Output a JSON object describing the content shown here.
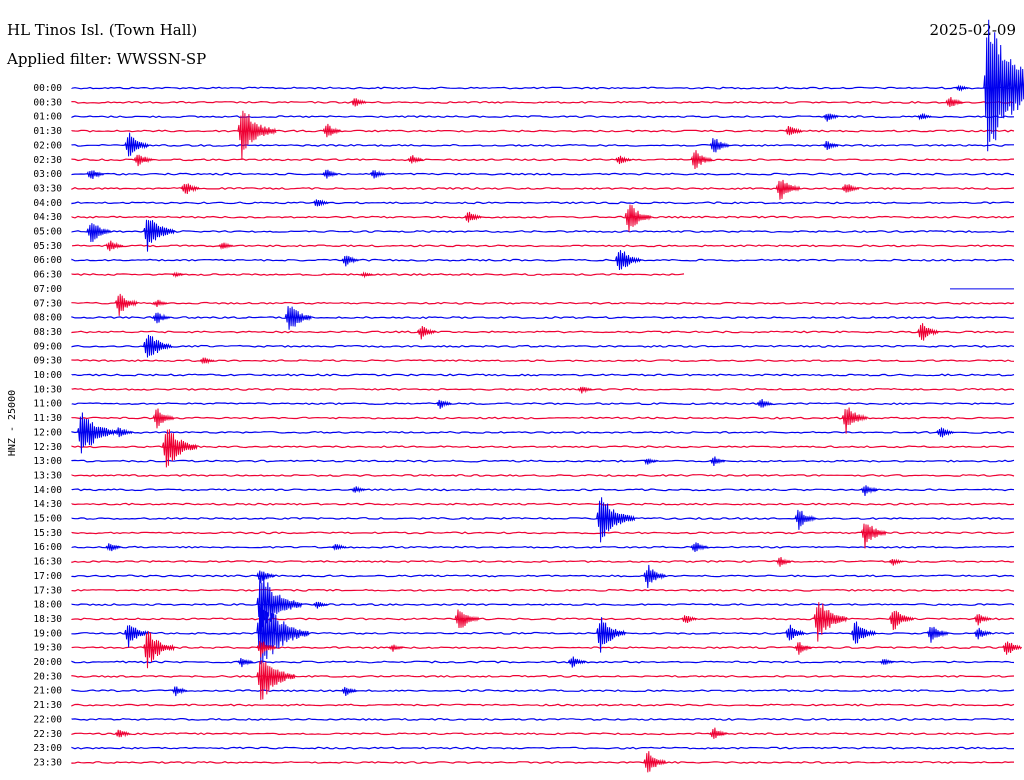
{
  "header": {
    "station": "HL Tinos Isl. (Town Hall)",
    "filter": "Applied filter: WWSSN-SP",
    "date": "2025-02-09"
  },
  "colors": {
    "odd_trace": "#0000ee",
    "even_trace": "#ee0033"
  },
  "chart_data": {
    "type": "line",
    "title": "HL Tinos Isl. (Town Hall)",
    "subtitle": "Applied filter: WWSSN-SP",
    "ylabel": "HNZ - 25000",
    "row_labels": [
      "00:00",
      "00:30",
      "01:00",
      "01:30",
      "02:00",
      "02:30",
      "03:00",
      "03:30",
      "04:00",
      "04:30",
      "05:00",
      "05:30",
      "06:00",
      "06:30",
      "07:00",
      "07:30",
      "08:00",
      "08:30",
      "09:00",
      "09:30",
      "10:00",
      "10:30",
      "11:00",
      "11:30",
      "12:00",
      "12:30",
      "13:00",
      "13:30",
      "14:00",
      "14:30",
      "15:00",
      "15:30",
      "16:00",
      "16:30",
      "17:00",
      "17:30",
      "18:00",
      "18:30",
      "19:00",
      "19:30",
      "20:00",
      "20:30",
      "21:00",
      "21:30",
      "22:00",
      "22:30",
      "23:00",
      "23:30"
    ],
    "row_minutes": 30,
    "trace_gap_rows": [
      "07:00"
    ],
    "events_note": "bursts: time position as fraction of row, relative amplitude (1 = row spacing)",
    "events": [
      {
        "row": "00:00",
        "t": 0.94,
        "amp": 0.25
      },
      {
        "row": "00:00",
        "t": 0.97,
        "amp": 5.0
      },
      {
        "row": "00:30",
        "t": 0.3,
        "amp": 0.4
      },
      {
        "row": "00:30",
        "t": 0.93,
        "amp": 0.5
      },
      {
        "row": "01:00",
        "t": 0.8,
        "amp": 0.4
      },
      {
        "row": "01:00",
        "t": 0.9,
        "amp": 0.3
      },
      {
        "row": "01:30",
        "t": 0.18,
        "amp": 2.0
      },
      {
        "row": "01:30",
        "t": 0.27,
        "amp": 0.6
      },
      {
        "row": "01:30",
        "t": 0.76,
        "amp": 0.5
      },
      {
        "row": "02:00",
        "t": 0.06,
        "amp": 1.0
      },
      {
        "row": "02:00",
        "t": 0.68,
        "amp": 0.7
      },
      {
        "row": "02:00",
        "t": 0.8,
        "amp": 0.4
      },
      {
        "row": "02:30",
        "t": 0.07,
        "amp": 0.6
      },
      {
        "row": "02:30",
        "t": 0.36,
        "amp": 0.4
      },
      {
        "row": "02:30",
        "t": 0.58,
        "amp": 0.4
      },
      {
        "row": "02:30",
        "t": 0.66,
        "amp": 0.8
      },
      {
        "row": "03:00",
        "t": 0.02,
        "amp": 0.5
      },
      {
        "row": "03:00",
        "t": 0.27,
        "amp": 0.4
      },
      {
        "row": "03:00",
        "t": 0.32,
        "amp": 0.4
      },
      {
        "row": "03:30",
        "t": 0.12,
        "amp": 0.6
      },
      {
        "row": "03:30",
        "t": 0.75,
        "amp": 1.0
      },
      {
        "row": "03:30",
        "t": 0.82,
        "amp": 0.5
      },
      {
        "row": "04:00",
        "t": 0.26,
        "amp": 0.4
      },
      {
        "row": "04:30",
        "t": 0.42,
        "amp": 0.5
      },
      {
        "row": "04:30",
        "t": 0.59,
        "amp": 1.2
      },
      {
        "row": "05:00",
        "t": 0.02,
        "amp": 1.0
      },
      {
        "row": "05:00",
        "t": 0.08,
        "amp": 1.5
      },
      {
        "row": "05:30",
        "t": 0.04,
        "amp": 0.5
      },
      {
        "row": "05:30",
        "t": 0.16,
        "amp": 0.3
      },
      {
        "row": "06:00",
        "t": 0.29,
        "amp": 0.5
      },
      {
        "row": "06:00",
        "t": 0.58,
        "amp": 1.1
      },
      {
        "row": "06:30",
        "t": 0.11,
        "amp": 0.2
      },
      {
        "row": "06:30",
        "t": 0.31,
        "amp": 0.2
      },
      {
        "row": "07:30",
        "t": 0.05,
        "amp": 0.9
      },
      {
        "row": "07:30",
        "t": 0.09,
        "amp": 0.3
      },
      {
        "row": "08:00",
        "t": 0.09,
        "amp": 0.5
      },
      {
        "row": "08:00",
        "t": 0.23,
        "amp": 1.2
      },
      {
        "row": "08:30",
        "t": 0.37,
        "amp": 0.6
      },
      {
        "row": "08:30",
        "t": 0.9,
        "amp": 0.8
      },
      {
        "row": "09:00",
        "t": 0.08,
        "amp": 1.3
      },
      {
        "row": "09:30",
        "t": 0.14,
        "amp": 0.3
      },
      {
        "row": "10:30",
        "t": 0.54,
        "amp": 0.3
      },
      {
        "row": "11:00",
        "t": 0.39,
        "amp": 0.4
      },
      {
        "row": "11:00",
        "t": 0.73,
        "amp": 0.4
      },
      {
        "row": "11:30",
        "t": 0.09,
        "amp": 0.8
      },
      {
        "row": "11:30",
        "t": 0.82,
        "amp": 1.1
      },
      {
        "row": "12:00",
        "t": 0.01,
        "amp": 2.0
      },
      {
        "row": "12:00",
        "t": 0.05,
        "amp": 0.5
      },
      {
        "row": "12:00",
        "t": 0.92,
        "amp": 0.5
      },
      {
        "row": "12:30",
        "t": 0.1,
        "amp": 1.8
      },
      {
        "row": "13:00",
        "t": 0.61,
        "amp": 0.3
      },
      {
        "row": "13:00",
        "t": 0.68,
        "amp": 0.4
      },
      {
        "row": "14:00",
        "t": 0.3,
        "amp": 0.3
      },
      {
        "row": "14:00",
        "t": 0.84,
        "amp": 0.5
      },
      {
        "row": "15:00",
        "t": 0.56,
        "amp": 2.0
      },
      {
        "row": "15:00",
        "t": 0.77,
        "amp": 0.8
      },
      {
        "row": "15:30",
        "t": 0.84,
        "amp": 1.1
      },
      {
        "row": "16:00",
        "t": 0.04,
        "amp": 0.4
      },
      {
        "row": "16:00",
        "t": 0.28,
        "amp": 0.3
      },
      {
        "row": "16:00",
        "t": 0.66,
        "amp": 0.5
      },
      {
        "row": "16:30",
        "t": 0.75,
        "amp": 0.4
      },
      {
        "row": "16:30",
        "t": 0.87,
        "amp": 0.3
      },
      {
        "row": "17:00",
        "t": 0.2,
        "amp": 0.6
      },
      {
        "row": "17:00",
        "t": 0.61,
        "amp": 0.9
      },
      {
        "row": "18:00",
        "t": 0.2,
        "amp": 2.5
      },
      {
        "row": "18:00",
        "t": 0.26,
        "amp": 0.3
      },
      {
        "row": "18:30",
        "t": 0.41,
        "amp": 1.0
      },
      {
        "row": "18:30",
        "t": 0.65,
        "amp": 0.4
      },
      {
        "row": "18:30",
        "t": 0.79,
        "amp": 1.7
      },
      {
        "row": "18:30",
        "t": 0.87,
        "amp": 1.0
      },
      {
        "row": "18:30",
        "t": 0.96,
        "amp": 0.5
      },
      {
        "row": "19:00",
        "t": 0.06,
        "amp": 1.0
      },
      {
        "row": "19:00",
        "t": 0.2,
        "amp": 3.0
      },
      {
        "row": "19:00",
        "t": 0.56,
        "amp": 1.4
      },
      {
        "row": "19:00",
        "t": 0.76,
        "amp": 0.7
      },
      {
        "row": "19:00",
        "t": 0.83,
        "amp": 1.0
      },
      {
        "row": "19:00",
        "t": 0.91,
        "amp": 0.8
      },
      {
        "row": "19:00",
        "t": 0.96,
        "amp": 0.5
      },
      {
        "row": "19:30",
        "t": 0.08,
        "amp": 1.5
      },
      {
        "row": "19:30",
        "t": 0.2,
        "amp": 0.7
      },
      {
        "row": "19:30",
        "t": 0.34,
        "amp": 0.3
      },
      {
        "row": "19:30",
        "t": 0.77,
        "amp": 0.5
      },
      {
        "row": "19:30",
        "t": 0.99,
        "amp": 0.7
      },
      {
        "row": "20:00",
        "t": 0.18,
        "amp": 0.4
      },
      {
        "row": "20:00",
        "t": 0.53,
        "amp": 0.5
      },
      {
        "row": "20:00",
        "t": 0.86,
        "amp": 0.3
      },
      {
        "row": "20:30",
        "t": 0.2,
        "amp": 2.0
      },
      {
        "row": "21:00",
        "t": 0.11,
        "amp": 0.4
      },
      {
        "row": "21:00",
        "t": 0.29,
        "amp": 0.4
      },
      {
        "row": "22:30",
        "t": 0.05,
        "amp": 0.4
      },
      {
        "row": "22:30",
        "t": 0.68,
        "amp": 0.5
      },
      {
        "row": "23:30",
        "t": 0.61,
        "amp": 0.9
      }
    ]
  }
}
